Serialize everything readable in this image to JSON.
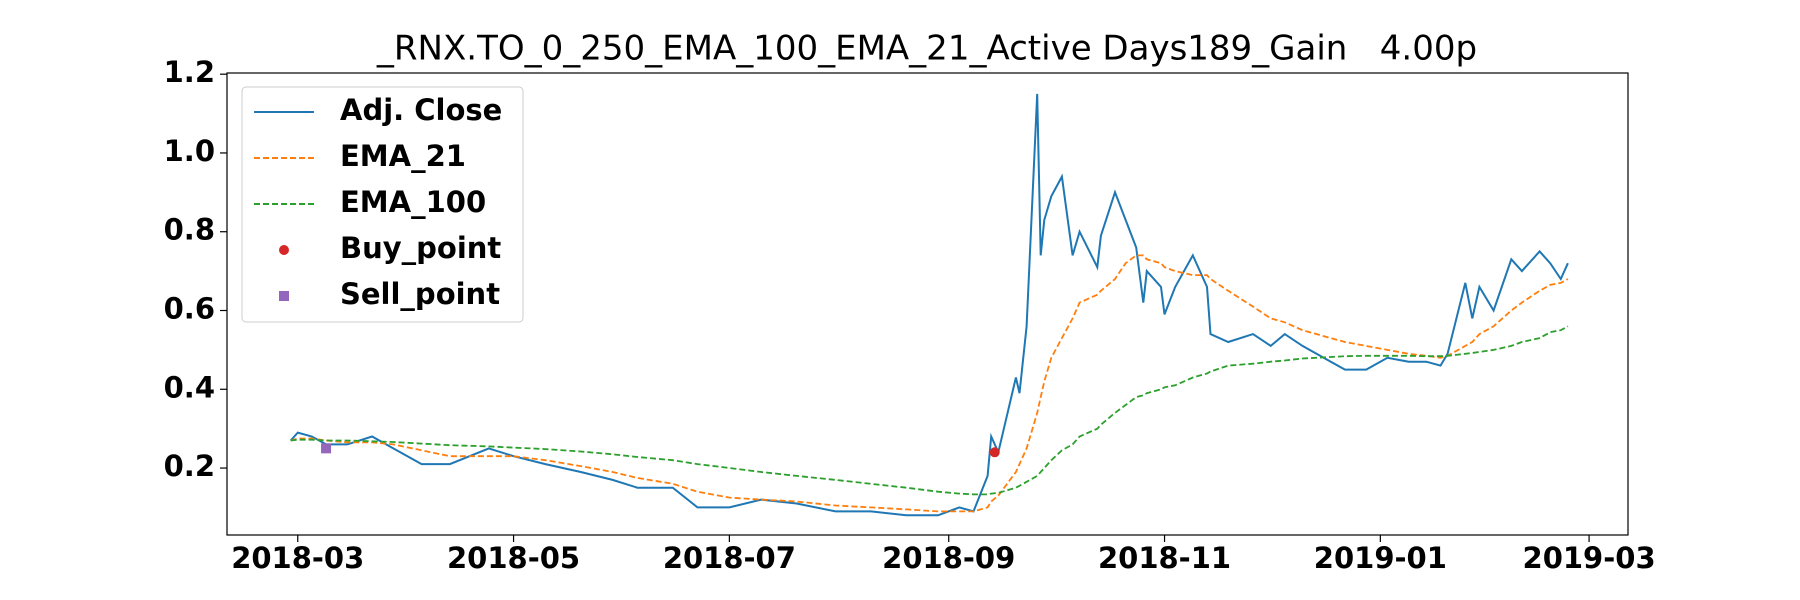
{
  "chart_data": {
    "type": "line",
    "title": "_RNX.TO_0_250_EMA_100_EMA_21_Active Days189_Gain   4.00p",
    "x": [
      "2018-02-27",
      "2018-03-01",
      "2018-03-05",
      "2018-03-09",
      "2018-03-15",
      "2018-03-22",
      "2018-03-28",
      "2018-04-05",
      "2018-04-13",
      "2018-04-24",
      "2018-05-01",
      "2018-05-10",
      "2018-05-20",
      "2018-05-29",
      "2018-06-05",
      "2018-06-15",
      "2018-06-22",
      "2018-07-01",
      "2018-07-10",
      "2018-07-20",
      "2018-07-31",
      "2018-08-10",
      "2018-08-20",
      "2018-08-29",
      "2018-09-04",
      "2018-09-08",
      "2018-09-12",
      "2018-09-13",
      "2018-09-15",
      "2018-09-20",
      "2018-09-21",
      "2018-09-23",
      "2018-09-26",
      "2018-09-27",
      "2018-09-28",
      "2018-09-30",
      "2018-10-03",
      "2018-10-06",
      "2018-10-08",
      "2018-10-13",
      "2018-10-14",
      "2018-10-18",
      "2018-10-21",
      "2018-10-24",
      "2018-10-26",
      "2018-10-27",
      "2018-10-31",
      "2018-11-01",
      "2018-11-04",
      "2018-11-09",
      "2018-11-13",
      "2018-11-14",
      "2018-11-19",
      "2018-11-26",
      "2018-12-01",
      "2018-12-05",
      "2018-12-10",
      "2018-12-18",
      "2018-12-22",
      "2018-12-28",
      "2019-01-03",
      "2019-01-09",
      "2019-01-14",
      "2019-01-18",
      "2019-01-20",
      "2019-01-25",
      "2019-01-27",
      "2019-01-29",
      "2019-02-02",
      "2019-02-07",
      "2019-02-10",
      "2019-02-15",
      "2019-02-18",
      "2019-02-21",
      "2019-02-23"
    ],
    "series": [
      {
        "name": "Adj. Close",
        "color": "#1f77b4",
        "style": "solid",
        "values": [
          0.27,
          0.29,
          0.28,
          0.26,
          0.26,
          0.28,
          0.25,
          0.21,
          0.21,
          0.25,
          0.23,
          0.21,
          0.19,
          0.17,
          0.15,
          0.15,
          0.1,
          0.1,
          0.12,
          0.11,
          0.09,
          0.09,
          0.08,
          0.08,
          0.1,
          0.09,
          0.18,
          0.28,
          0.24,
          0.43,
          0.39,
          0.56,
          1.15,
          0.74,
          0.83,
          0.89,
          0.94,
          0.74,
          0.8,
          0.71,
          0.79,
          0.9,
          0.83,
          0.76,
          0.62,
          0.7,
          0.66,
          0.59,
          0.66,
          0.74,
          0.66,
          0.54,
          0.52,
          0.54,
          0.51,
          0.54,
          0.51,
          0.47,
          0.45,
          0.45,
          0.48,
          0.47,
          0.47,
          0.46,
          0.49,
          0.67,
          0.58,
          0.66,
          0.6,
          0.73,
          0.7,
          0.75,
          0.72,
          0.68,
          0.72
        ]
      },
      {
        "name": "EMA_21",
        "color": "#ff7f0e",
        "style": "dashed",
        "values": [
          0.27,
          0.275,
          0.275,
          0.27,
          0.265,
          0.265,
          0.26,
          0.245,
          0.23,
          0.23,
          0.23,
          0.22,
          0.205,
          0.19,
          0.175,
          0.16,
          0.14,
          0.125,
          0.12,
          0.115,
          0.105,
          0.1,
          0.095,
          0.09,
          0.09,
          0.09,
          0.1,
          0.115,
          0.13,
          0.19,
          0.21,
          0.25,
          0.34,
          0.38,
          0.42,
          0.48,
          0.53,
          0.58,
          0.62,
          0.64,
          0.65,
          0.68,
          0.72,
          0.74,
          0.74,
          0.73,
          0.72,
          0.71,
          0.7,
          0.69,
          0.69,
          0.68,
          0.65,
          0.61,
          0.58,
          0.57,
          0.55,
          0.53,
          0.52,
          0.51,
          0.5,
          0.49,
          0.485,
          0.48,
          0.485,
          0.51,
          0.52,
          0.54,
          0.56,
          0.6,
          0.62,
          0.65,
          0.665,
          0.67,
          0.68
        ]
      },
      {
        "name": "EMA_100",
        "color": "#2ca02c",
        "style": "dashed",
        "values": [
          0.27,
          0.272,
          0.272,
          0.27,
          0.27,
          0.268,
          0.266,
          0.262,
          0.258,
          0.255,
          0.252,
          0.248,
          0.242,
          0.235,
          0.228,
          0.22,
          0.21,
          0.2,
          0.19,
          0.18,
          0.17,
          0.16,
          0.15,
          0.14,
          0.135,
          0.133,
          0.133,
          0.135,
          0.137,
          0.15,
          0.155,
          0.165,
          0.18,
          0.19,
          0.2,
          0.22,
          0.245,
          0.26,
          0.28,
          0.3,
          0.31,
          0.34,
          0.36,
          0.38,
          0.385,
          0.39,
          0.4,
          0.405,
          0.41,
          0.43,
          0.44,
          0.445,
          0.46,
          0.465,
          0.47,
          0.473,
          0.478,
          0.482,
          0.484,
          0.485,
          0.485,
          0.485,
          0.484,
          0.484,
          0.485,
          0.49,
          0.492,
          0.495,
          0.5,
          0.51,
          0.52,
          0.53,
          0.545,
          0.55,
          0.56
        ]
      },
      {
        "name": "Buy_point",
        "color": "#d62728",
        "style": "circle",
        "x": [
          "2018-09-14"
        ],
        "values": [
          0.24
        ]
      },
      {
        "name": "Sell_point",
        "color": "#9467bd",
        "style": "square",
        "x": [
          "2018-03-09"
        ],
        "values": [
          0.25
        ]
      }
    ],
    "xlim": [
      "2018-02-09",
      "2019-03-12"
    ],
    "xticks": [
      {
        "value": "2018-03-01",
        "label": "2018-03"
      },
      {
        "value": "2018-05-01",
        "label": "2018-05"
      },
      {
        "value": "2018-07-01",
        "label": "2018-07"
      },
      {
        "value": "2018-09-01",
        "label": "2018-09"
      },
      {
        "value": "2018-11-01",
        "label": "2018-11"
      },
      {
        "value": "2019-01-01",
        "label": "2019-01"
      },
      {
        "value": "2019-03-01",
        "label": "2019-03"
      }
    ],
    "ylim": [
      0.03,
      1.203
    ],
    "yticks": [
      0.2,
      0.4,
      0.6,
      0.8,
      {
        "value": 1,
        "label": "1.0"
      },
      1.2
    ],
    "legend": "upper left"
  }
}
